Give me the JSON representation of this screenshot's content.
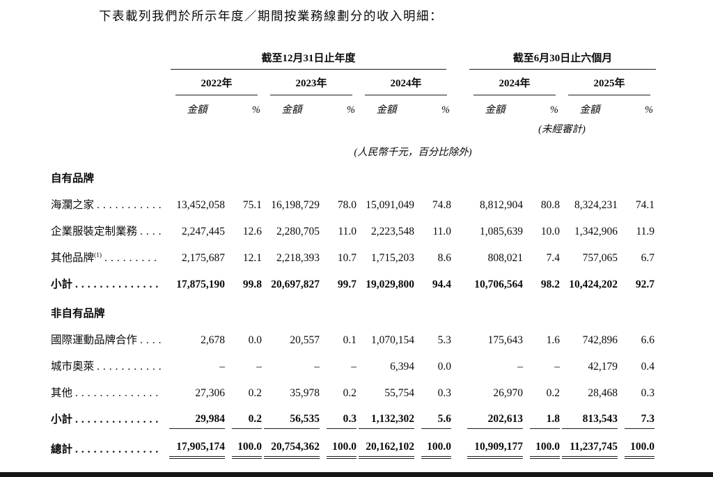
{
  "intro": "下表載列我們於所示年度／期間按業務線劃分的收入明細：",
  "table": {
    "group_annual": {
      "title": "截至12月31日止年度"
    },
    "group_interim": {
      "title": "截至6月30日止六個月",
      "audit_note": "(未經審計)"
    },
    "years": [
      "2022年",
      "2023年",
      "2024年",
      "2024年",
      "2025年"
    ],
    "col_amount": "金額",
    "col_pct": "%",
    "unit_note": "(人民幣千元，百分比除外)",
    "rows": [
      {
        "type": "section",
        "label": "自有品牌"
      },
      {
        "type": "data",
        "label": "海瀾之家",
        "dots": "...........",
        "values": [
          "13,452,058",
          "75.1",
          "16,198,729",
          "78.0",
          "15,091,049",
          "74.8",
          "8,812,904",
          "80.8",
          "8,324,231",
          "74.1"
        ]
      },
      {
        "type": "data",
        "label": "企業服裝定制業務",
        "dots": "....",
        "values": [
          "2,247,445",
          "12.6",
          "2,280,705",
          "11.0",
          "2,223,548",
          "11.0",
          "1,085,639",
          "10.0",
          "1,342,906",
          "11.9"
        ]
      },
      {
        "type": "data",
        "label": "其他品牌",
        "sup": "(1)",
        "dots": ".........",
        "values": [
          "2,175,687",
          "12.1",
          "2,218,393",
          "10.7",
          "1,715,203",
          "8.6",
          "808,021",
          "7.4",
          "757,065",
          "6.7"
        ]
      },
      {
        "type": "sub",
        "label": "小計",
        "dots": "..............",
        "values": [
          "17,875,190",
          "99.8",
          "20,697,827",
          "99.7",
          "19,029,800",
          "94.4",
          "10,706,564",
          "98.2",
          "10,424,202",
          "92.7"
        ]
      },
      {
        "type": "section",
        "label": "非自有品牌"
      },
      {
        "type": "data",
        "label": "國際運動品牌合作",
        "dots": "....",
        "values": [
          "2,678",
          "0.0",
          "20,557",
          "0.1",
          "1,070,154",
          "5.3",
          "175,643",
          "1.6",
          "742,896",
          "6.6"
        ]
      },
      {
        "type": "data",
        "label": "城市奧萊",
        "dots": "...........",
        "values": [
          "–",
          "–",
          "–",
          "–",
          "6,394",
          "0.0",
          "–",
          "–",
          "42,179",
          "0.4"
        ]
      },
      {
        "type": "data",
        "label": "其他",
        "dots": "..............",
        "values": [
          "27,306",
          "0.2",
          "35,978",
          "0.2",
          "55,754",
          "0.3",
          "26,970",
          "0.2",
          "28,468",
          "0.3"
        ]
      },
      {
        "type": "sub",
        "label": "小計",
        "dots": "..............",
        "rule": "single",
        "values": [
          "29,984",
          "0.2",
          "56,535",
          "0.3",
          "1,132,302",
          "5.6",
          "202,613",
          "1.8",
          "813,543",
          "7.3"
        ]
      },
      {
        "type": "total",
        "label": "總計",
        "dots": "..............",
        "rule": "double",
        "values": [
          "17,905,174",
          "100.0",
          "20,754,362",
          "100.0",
          "20,162,102",
          "100.0",
          "10,909,177",
          "100.0",
          "11,237,745",
          "100.0"
        ]
      }
    ]
  }
}
